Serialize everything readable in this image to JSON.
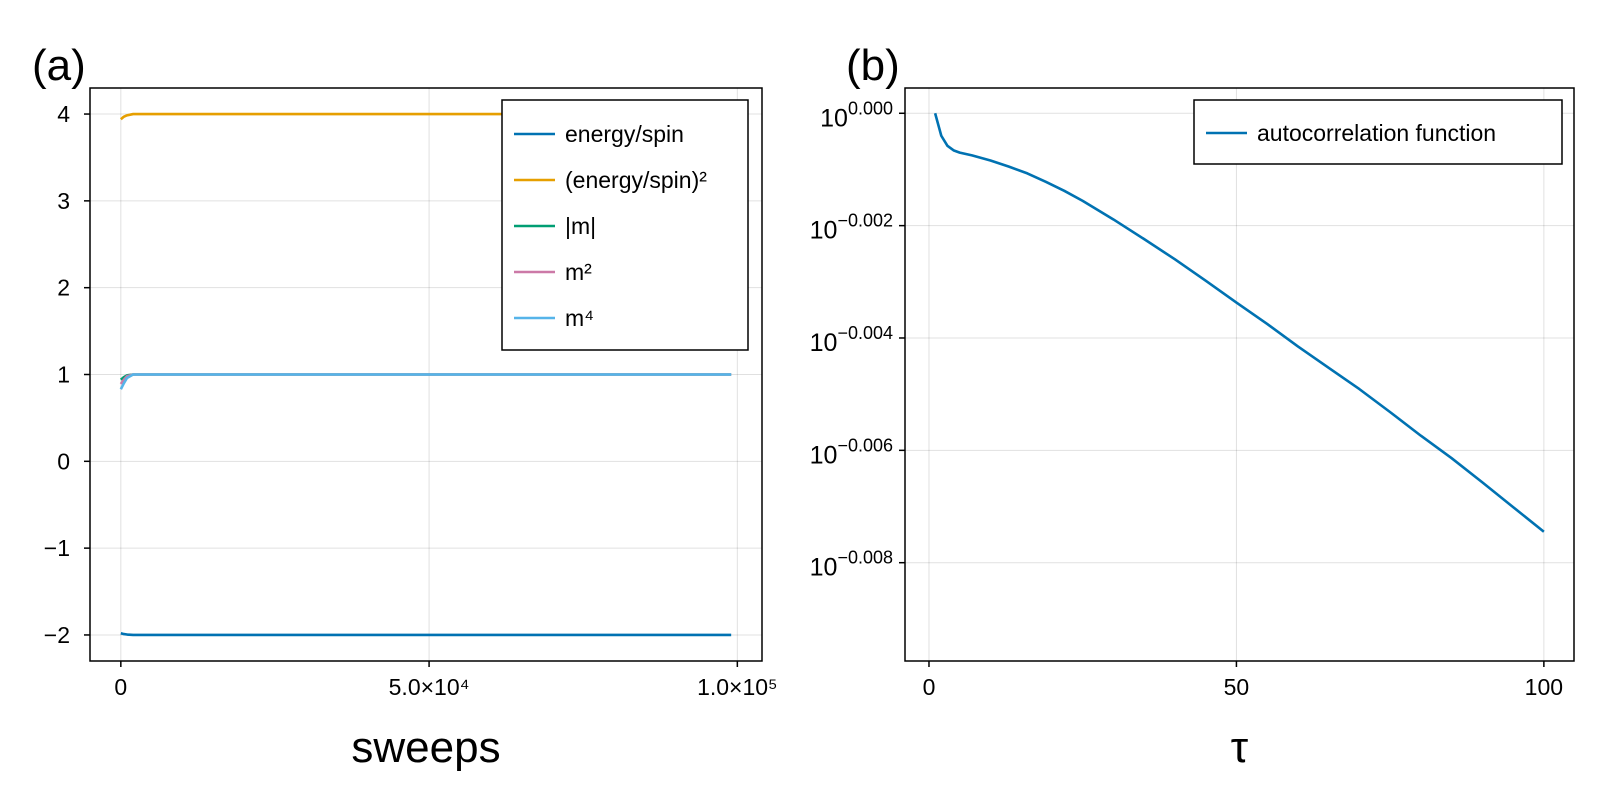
{
  "chart_data": [
    {
      "panel_label": "(a)",
      "type": "line",
      "xlabel": "sweeps",
      "ylabel": "",
      "xlim": [
        -5000,
        104000
      ],
      "ylim": [
        -2.3,
        4.3
      ],
      "x_ticks": [
        {
          "value": 0,
          "label": "0"
        },
        {
          "value": 50000,
          "label": "5.0×10⁴"
        },
        {
          "value": 100000,
          "label": "1.0×10⁵"
        }
      ],
      "y_ticks": [
        {
          "value": -2,
          "label": "−2"
        },
        {
          "value": -1,
          "label": "−1"
        },
        {
          "value": 0,
          "label": "0"
        },
        {
          "value": 1,
          "label": "1"
        },
        {
          "value": 2,
          "label": "2"
        },
        {
          "value": 3,
          "label": "3"
        },
        {
          "value": 4,
          "label": "4"
        }
      ],
      "grid": true,
      "legend_position": "top-right",
      "series": [
        {
          "name": "energy/spin",
          "color": "#0072b2",
          "x": [
            0,
            500,
            1000,
            2000,
            99000
          ],
          "y": [
            -1.98,
            -1.99,
            -1.995,
            -2.0,
            -2.0
          ]
        },
        {
          "name": "(energy/spin)²",
          "color": "#e69f00",
          "x": [
            0,
            500,
            1000,
            2000,
            99000
          ],
          "y": [
            3.94,
            3.97,
            3.985,
            4.0,
            4.0
          ]
        },
        {
          "name": "|m|",
          "color": "#009e73",
          "x": [
            0,
            500,
            1000,
            2000,
            99000
          ],
          "y": [
            0.94,
            0.97,
            0.99,
            1.0,
            1.0
          ]
        },
        {
          "name": "m²",
          "color": "#cc79a7",
          "x": [
            0,
            500,
            1000,
            2000,
            99000
          ],
          "y": [
            0.89,
            0.94,
            0.98,
            1.0,
            1.0
          ]
        },
        {
          "name": "m⁴",
          "color": "#56b4e9",
          "x": [
            0,
            500,
            1000,
            2000,
            99000
          ],
          "y": [
            0.83,
            0.9,
            0.96,
            1.0,
            1.0
          ]
        }
      ]
    },
    {
      "panel_label": "(b)",
      "type": "line",
      "xlabel": "τ",
      "ylabel": "",
      "y_scale": "log10",
      "xlim": [
        -3.9,
        104.9
      ],
      "ylim_log10": [
        -0.00975,
        0.00045
      ],
      "x_ticks": [
        {
          "value": 0,
          "label": "0"
        },
        {
          "value": 50,
          "label": "50"
        },
        {
          "value": 100,
          "label": "100"
        }
      ],
      "y_ticks": [
        {
          "value": 0,
          "base": "10",
          "exp": "0.000"
        },
        {
          "value": -0.002,
          "base": "10",
          "exp": "−0.002"
        },
        {
          "value": -0.004,
          "base": "10",
          "exp": "−0.004"
        },
        {
          "value": -0.006,
          "base": "10",
          "exp": "−0.006"
        },
        {
          "value": -0.008,
          "base": "10",
          "exp": "−0.008"
        }
      ],
      "grid": true,
      "legend_position": "top-right",
      "series": [
        {
          "name": "autocorrelation function",
          "color": "#0072b2",
          "x": [
            1,
            2,
            3,
            4,
            5,
            7,
            10,
            13,
            16,
            19,
            22,
            25,
            30,
            35,
            40,
            45,
            50,
            55,
            60,
            65,
            70,
            75,
            80,
            85,
            90,
            95,
            100
          ],
          "y_log10": [
            0.0,
            -0.0004,
            -0.00058,
            -0.00066,
            -0.0007,
            -0.00075,
            -0.00084,
            -0.00095,
            -0.00107,
            -0.00122,
            -0.00138,
            -0.00156,
            -0.00189,
            -0.00224,
            -0.0026,
            -0.00298,
            -0.00337,
            -0.00375,
            -0.00415,
            -0.00453,
            -0.00491,
            -0.00532,
            -0.00574,
            -0.00614,
            -0.00657,
            -0.00701,
            -0.00745
          ]
        }
      ]
    }
  ]
}
